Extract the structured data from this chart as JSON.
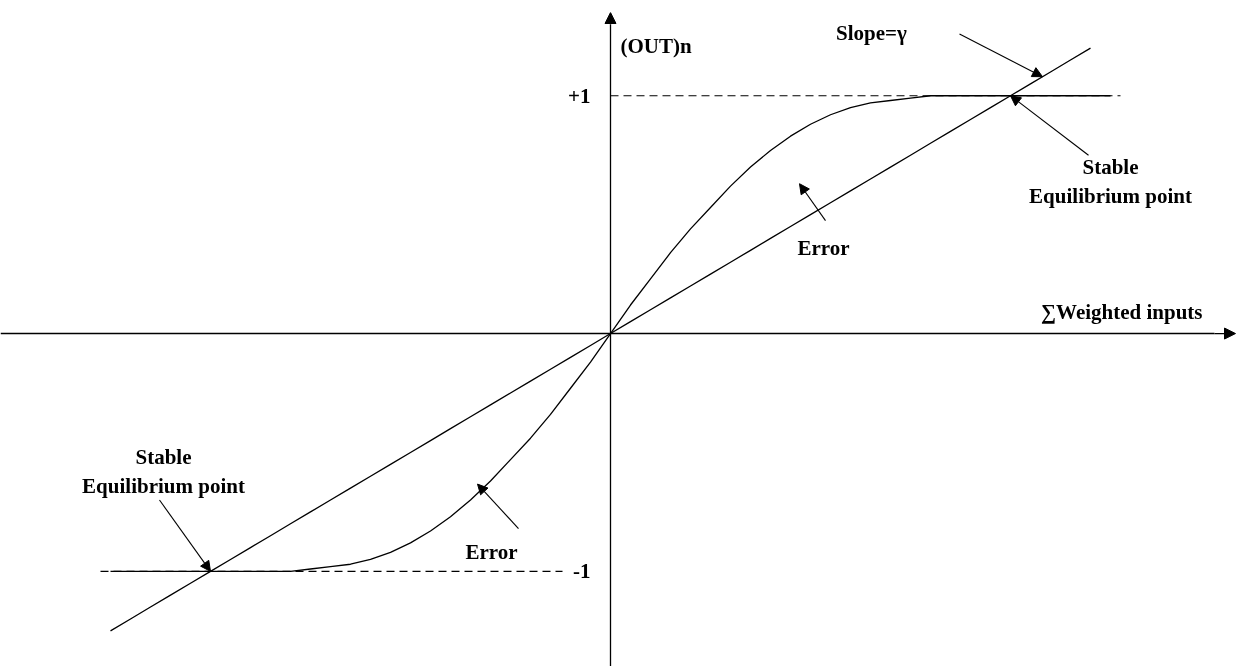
{
  "chart_data": {
    "type": "line",
    "xlabel": "∑Weighted inputs",
    "ylabel": "(OUT)n",
    "categories": [
      null,
      null,
      null,
      null,
      null,
      null,
      null,
      null,
      null,
      null,
      null,
      null,
      null,
      null,
      null,
      null,
      null,
      null,
      null,
      null,
      null,
      null,
      null,
      null,
      null,
      null,
      null,
      null,
      null,
      null,
      null,
      null,
      null,
      null,
      null,
      null,
      null,
      null,
      null,
      null,
      null,
      null,
      null,
      null,
      null,
      null,
      null,
      null,
      null,
      null,
      null
    ],
    "series": [
      {
        "color": "#000000",
        "values": [
          -1,
          -1,
          -1,
          -1,
          -1,
          -1,
          -1,
          -1,
          -1,
          -1,
          -0.99,
          -0.98,
          -0.97,
          -0.95,
          -0.92,
          -0.88,
          -0.83,
          -0.77,
          -0.7,
          -0.62,
          -0.53,
          -0.44,
          -0.34,
          -0.23,
          -0.12,
          0,
          0.12,
          0.23,
          0.34,
          0.44,
          0.53,
          0.62,
          0.7,
          0.77,
          0.83,
          0.88,
          0.92,
          0.95,
          0.97,
          0.98,
          0.99,
          1,
          1,
          1,
          1,
          1,
          1,
          1,
          1,
          1,
          1
        ]
      },
      {
        "color": "#000000",
        "values": [
          -1.25,
          -1.2,
          -1.15,
          -1.1,
          -1.05,
          -1,
          -0.95,
          -0.9,
          -0.85,
          -0.8,
          -0.75,
          -0.7,
          -0.65,
          -0.6,
          -0.55,
          -0.5,
          -0.45,
          -0.4,
          -0.35,
          -0.3,
          -0.25,
          -0.2,
          -0.15,
          -0.1,
          -0.05,
          0,
          0.05,
          0.1,
          0.15,
          0.2,
          0.25,
          0.3,
          0.35,
          0.4,
          0.45,
          0.5,
          0.55,
          0.6,
          0.65,
          0.7,
          0.75,
          0.8,
          0.85,
          0.9,
          0.95,
          1,
          1.05,
          1.1,
          1.15,
          1.2,
          null
        ]
      }
    ],
    "ylim": [
      -1.4,
      1.35
    ],
    "yticks": [
      -1,
      {
        "value": 1,
        "label": "+1"
      }
    ],
    "tick_labels": "y",
    "ref_lines": [
      {
        "axis": "y",
        "value": 1,
        "line_style": "dashed",
        "color": "#000000"
      },
      {
        "axis": "y",
        "value": -1,
        "line_style": "dashed",
        "color": "#000000"
      }
    ],
    "annotations": [
      "Slope=γ",
      "Stable Equilibrium point",
      "Error",
      "Stable Equilibrium point",
      "Error"
    ]
  }
}
